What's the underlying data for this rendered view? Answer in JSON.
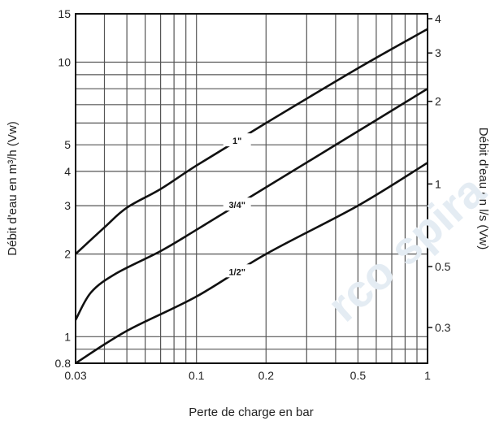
{
  "chart_data": {
    "type": "line",
    "xlabel": "Perte de charge en bar",
    "ylabel": "Débit d'eau en m³/h (Vw)",
    "y2label": "Débit d'eau en l/s (Vw)",
    "xscale": "log",
    "yscale": "log",
    "xlim": [
      0.03,
      1
    ],
    "ylim": [
      0.8,
      15
    ],
    "grid": true,
    "x_ticks": [
      {
        "value": 0.03,
        "label": "0.03"
      },
      {
        "value": 0.1,
        "label": "0.1"
      },
      {
        "value": 0.2,
        "label": "0.2"
      },
      {
        "value": 0.5,
        "label": "0.5"
      },
      {
        "value": 1,
        "label": "1"
      }
    ],
    "x_grid": [
      0.03,
      0.04,
      0.05,
      0.06,
      0.07,
      0.08,
      0.09,
      0.1,
      0.2,
      0.3,
      0.4,
      0.5,
      0.6,
      0.7,
      0.8,
      0.9,
      1
    ],
    "y_ticks": [
      {
        "value": 0.8,
        "label": "0.8"
      },
      {
        "value": 1,
        "label": "1"
      },
      {
        "value": 2,
        "label": "2"
      },
      {
        "value": 3,
        "label": "3"
      },
      {
        "value": 4,
        "label": "4"
      },
      {
        "value": 5,
        "label": "5"
      },
      {
        "value": 10,
        "label": "10"
      },
      {
        "value": 15,
        "label": "15"
      }
    ],
    "y_grid": [
      0.8,
      0.9,
      1,
      2,
      3,
      4,
      5,
      6,
      7,
      8,
      9,
      10,
      15
    ],
    "y2_ticks": [
      {
        "value": 0.3,
        "label": "0.3"
      },
      {
        "value": 0.5,
        "label": "0.5"
      },
      {
        "value": 1,
        "label": "1"
      },
      {
        "value": 2,
        "label": "2"
      },
      {
        "value": 3,
        "label": "3"
      },
      {
        "value": 4,
        "label": "4"
      }
    ],
    "series": [
      {
        "name": "1\"",
        "x": [
          0.03,
          0.04,
          0.05,
          0.07,
          0.1,
          0.2,
          0.5,
          1
        ],
        "y": [
          2.0,
          2.5,
          2.95,
          3.45,
          4.2,
          6.0,
          9.5,
          13.2
        ]
      },
      {
        "name": "3/4\"",
        "x": [
          0.03,
          0.035,
          0.045,
          0.07,
          0.1,
          0.2,
          0.5,
          1
        ],
        "y": [
          1.15,
          1.45,
          1.7,
          2.05,
          2.45,
          3.5,
          5.6,
          8.0
        ]
      },
      {
        "name": "1/2\"",
        "x": [
          0.03,
          0.05,
          0.1,
          0.2,
          0.5,
          1
        ],
        "y": [
          0.8,
          1.05,
          1.4,
          2.0,
          3.0,
          4.3
        ]
      }
    ],
    "series_colors": [
      "#111111",
      "#111111",
      "#111111"
    ]
  },
  "watermark": "rco spira"
}
